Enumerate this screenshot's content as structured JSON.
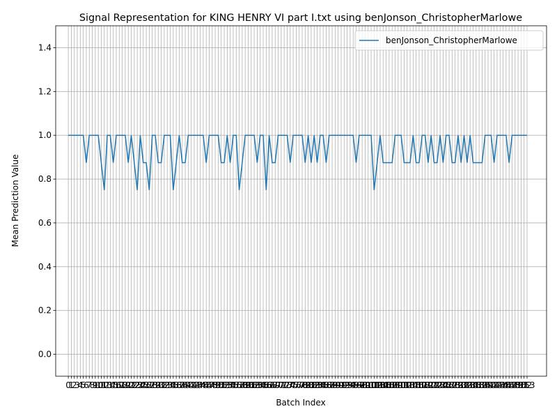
{
  "chart_data": {
    "type": "line",
    "title": "Signal Representation for KING HENRY VI part I.txt using benJonson_ChristopherMarlowe",
    "xlabel": "Batch Index",
    "ylabel": "Mean Prediction Value",
    "x": [
      0,
      1,
      2,
      3,
      4,
      5,
      6,
      7,
      8,
      9,
      10,
      11,
      12,
      13,
      14,
      15,
      16,
      17,
      18,
      19,
      20,
      21,
      22,
      23,
      24,
      25,
      26,
      27,
      28,
      29,
      30,
      31,
      32,
      33,
      34,
      35,
      36,
      37,
      38,
      39,
      40,
      41,
      42,
      43,
      44,
      45,
      46,
      47,
      48,
      49,
      50,
      51,
      52,
      53,
      54,
      55,
      56,
      57,
      58,
      59,
      60,
      61,
      62,
      63,
      64,
      65,
      66,
      67,
      68,
      69,
      70,
      71,
      72,
      73,
      74,
      75,
      76,
      77,
      78,
      79,
      80,
      81,
      82,
      83,
      84,
      85,
      86,
      87,
      88,
      89,
      90,
      91,
      92,
      93,
      94,
      95,
      96,
      97,
      98,
      99,
      100,
      101,
      102,
      103,
      104,
      105,
      106,
      107,
      108,
      109,
      110,
      111,
      112,
      113,
      114,
      115,
      116,
      117,
      118,
      119,
      120,
      121,
      122,
      123,
      124,
      125,
      126,
      127,
      128,
      129,
      130,
      131,
      132,
      133,
      134,
      135,
      136,
      137,
      138,
      139,
      140,
      141,
      142,
      143,
      144,
      145,
      146,
      147,
      148,
      149,
      150,
      151,
      152,
      153
    ],
    "series": [
      {
        "name": "benJonson_ChristopherMarlowe",
        "color": "#1f77b4",
        "values": [
          1,
          1,
          1,
          1,
          1,
          1,
          0.875,
          1,
          1,
          1,
          1,
          0.875,
          0.75,
          1,
          1,
          0.875,
          1,
          1,
          1,
          1,
          0.875,
          1,
          0.875,
          0.75,
          1,
          0.875,
          0.875,
          0.75,
          1,
          1,
          0.875,
          0.875,
          1,
          1,
          1,
          0.75,
          0.875,
          1,
          0.875,
          0.875,
          1,
          1,
          1,
          1,
          1,
          1,
          0.875,
          1,
          1,
          1,
          1,
          0.875,
          0.875,
          1,
          0.875,
          1,
          1,
          0.75,
          0.875,
          1,
          1,
          1,
          1,
          0.875,
          1,
          1,
          0.75,
          1,
          0.875,
          0.875,
          1,
          1,
          1,
          1,
          0.875,
          1,
          1,
          1,
          1,
          0.875,
          1,
          0.875,
          1,
          0.875,
          1,
          1,
          0.875,
          1,
          1,
          1,
          1,
          1,
          1,
          1,
          1,
          1,
          0.875,
          1,
          1,
          1,
          1,
          1,
          0.75,
          0.875,
          1,
          0.875,
          0.875,
          0.875,
          0.875,
          1,
          1,
          1,
          0.875,
          0.875,
          0.875,
          1,
          0.875,
          0.875,
          1,
          1,
          0.875,
          1,
          0.875,
          0.875,
          1,
          0.875,
          1,
          1,
          0.875,
          0.875,
          1,
          0.875,
          1,
          0.875,
          1,
          0.875,
          0.875,
          0.875,
          0.875,
          1,
          1,
          1,
          0.875,
          1,
          1,
          1,
          1,
          0.875,
          1,
          1,
          1,
          1,
          1,
          1
        ]
      }
    ],
    "xlim": [
      -4.2,
      159.5
    ],
    "xticks": [
      0,
      1,
      2,
      3,
      4,
      5,
      6,
      7,
      8,
      9,
      10,
      11,
      12,
      13,
      14,
      15,
      16,
      17,
      18,
      19,
      20,
      21,
      22,
      23,
      24,
      25,
      26,
      27,
      28,
      29,
      30,
      31,
      32,
      33,
      34,
      35,
      36,
      37,
      38,
      39,
      40,
      41,
      42,
      43,
      44,
      45,
      46,
      47,
      48,
      49,
      50,
      51,
      52,
      53,
      54,
      55,
      56,
      57,
      58,
      59,
      60,
      61,
      62,
      63,
      64,
      65,
      66,
      67,
      68,
      69,
      70,
      71,
      72,
      73,
      74,
      75,
      76,
      77,
      78,
      79,
      80,
      81,
      82,
      83,
      84,
      85,
      86,
      87,
      88,
      89,
      90,
      91,
      92,
      93,
      94,
      95,
      96,
      97,
      98,
      99,
      100,
      101,
      102,
      103,
      104,
      105,
      106,
      107,
      108,
      109,
      110,
      111,
      112,
      113,
      114,
      115,
      116,
      117,
      118,
      119,
      120,
      121,
      122,
      123,
      124,
      125,
      126,
      127,
      128,
      129,
      130,
      131,
      132,
      133,
      134,
      135,
      136,
      137,
      138,
      139,
      140,
      141,
      142,
      143,
      144,
      145,
      146,
      147,
      148,
      149,
      150,
      151,
      152,
      153
    ],
    "ylim": [
      -0.1,
      1.5
    ],
    "yticks": [
      {
        "value": 0,
        "label": "0.0"
      },
      0.2,
      0.4,
      0.6,
      0.8,
      {
        "value": 1,
        "label": "1.0"
      },
      1.2,
      1.4
    ],
    "grid": true,
    "legend": "upper right"
  }
}
